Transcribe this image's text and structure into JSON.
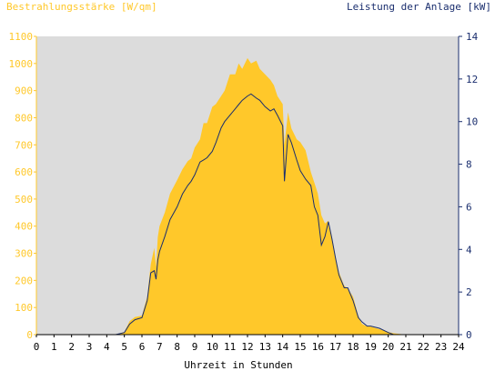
{
  "chart_data": {
    "type": "area",
    "title_left": "Bestrahlungsstärke [W/qm]",
    "title_right": "Leistung der Anlage [kW]",
    "xlabel": "Uhrzeit in Stunden",
    "xlim": [
      0,
      24
    ],
    "x_ticks": [
      "0",
      "1",
      "2",
      "3",
      "4",
      "5",
      "6",
      "7",
      "8",
      "9",
      "10",
      "11",
      "12",
      "13",
      "14",
      "15",
      "16",
      "17",
      "18",
      "19",
      "20",
      "21",
      "22",
      "23",
      "24"
    ],
    "y_left": {
      "lim": [
        0,
        1100
      ],
      "ticks": [
        "0",
        "100",
        "200",
        "300",
        "400",
        "500",
        "600",
        "700",
        "800",
        "900",
        "1000",
        "1100"
      ]
    },
    "y_right": {
      "lim": [
        0,
        14
      ],
      "ticks": [
        "0",
        "2",
        "4",
        "6",
        "8",
        "10",
        "12",
        "14"
      ]
    },
    "grid": false,
    "colors": {
      "plot_bg": "#dcdcdc",
      "irradiance": "#ffc82a",
      "power": "#1a2e6e",
      "left_axis": "#ffc82a",
      "right_axis": "#1a2e6e",
      "x_axis": "#000000"
    },
    "series": [
      {
        "axis": "left",
        "x": [
          0,
          4.5,
          5.0,
          5.3,
          5.6,
          6.0,
          6.3,
          6.5,
          6.7,
          6.8,
          6.9,
          7.0,
          7.3,
          7.6,
          8.0,
          8.3,
          8.6,
          8.8,
          9.0,
          9.3,
          9.5,
          9.7,
          10.0,
          10.2,
          10.5,
          10.7,
          11.0,
          11.3,
          11.5,
          11.7,
          12.0,
          12.2,
          12.5,
          12.7,
          13.0,
          13.3,
          13.5,
          13.7,
          14.0,
          14.1,
          14.3,
          14.5,
          14.8,
          15.0,
          15.3,
          15.6,
          15.8,
          16.0,
          16.2,
          16.4,
          16.6,
          16.8,
          17.0,
          17.2,
          17.5,
          17.7,
          18.0,
          18.3,
          18.5,
          18.8,
          19.0,
          19.5,
          20.0,
          20.3,
          21,
          24
        ],
        "values": [
          0,
          0,
          10,
          50,
          65,
          70,
          140,
          260,
          320,
          250,
          360,
          400,
          450,
          520,
          570,
          610,
          640,
          650,
          690,
          720,
          780,
          780,
          840,
          850,
          880,
          900,
          960,
          960,
          1000,
          980,
          1020,
          1000,
          1010,
          980,
          960,
          940,
          920,
          880,
          850,
          700,
          820,
          760,
          720,
          710,
          680,
          600,
          560,
          520,
          440,
          410,
          420,
          360,
          290,
          230,
          180,
          170,
          140,
          70,
          40,
          30,
          30,
          20,
          10,
          5,
          0,
          0
        ]
      },
      {
        "axis": "right",
        "x": [
          0,
          4.5,
          5.0,
          5.3,
          5.6,
          6.0,
          6.3,
          6.5,
          6.7,
          6.8,
          6.9,
          7.0,
          7.3,
          7.6,
          8.0,
          8.3,
          8.6,
          8.8,
          9.0,
          9.3,
          9.5,
          9.7,
          10.0,
          10.2,
          10.5,
          10.7,
          11.0,
          11.3,
          11.5,
          11.7,
          12.0,
          12.2,
          12.5,
          12.7,
          13.0,
          13.3,
          13.5,
          13.7,
          14.0,
          14.1,
          14.3,
          14.5,
          14.8,
          15.0,
          15.3,
          15.6,
          15.8,
          16.0,
          16.2,
          16.4,
          16.6,
          16.8,
          17.0,
          17.2,
          17.5,
          17.7,
          18.0,
          18.3,
          18.5,
          18.8,
          19.0,
          19.5,
          20.0,
          20.3,
          21,
          24
        ],
        "values": [
          0,
          0,
          0.1,
          0.5,
          0.7,
          0.8,
          1.6,
          2.9,
          3.0,
          2.6,
          3.5,
          3.9,
          4.6,
          5.4,
          6.0,
          6.6,
          7.0,
          7.2,
          7.5,
          8.1,
          8.2,
          8.3,
          8.6,
          9.0,
          9.7,
          10.0,
          10.3,
          10.6,
          10.8,
          11.0,
          11.2,
          11.3,
          11.1,
          11.0,
          10.7,
          10.5,
          10.6,
          10.3,
          9.8,
          7.2,
          9.4,
          9.0,
          8.2,
          7.7,
          7.3,
          7.0,
          6.0,
          5.6,
          4.2,
          4.6,
          5.3,
          4.5,
          3.6,
          2.8,
          2.2,
          2.2,
          1.6,
          0.8,
          0.6,
          0.4,
          0.4,
          0.3,
          0.1,
          0,
          0,
          0
        ]
      }
    ]
  }
}
